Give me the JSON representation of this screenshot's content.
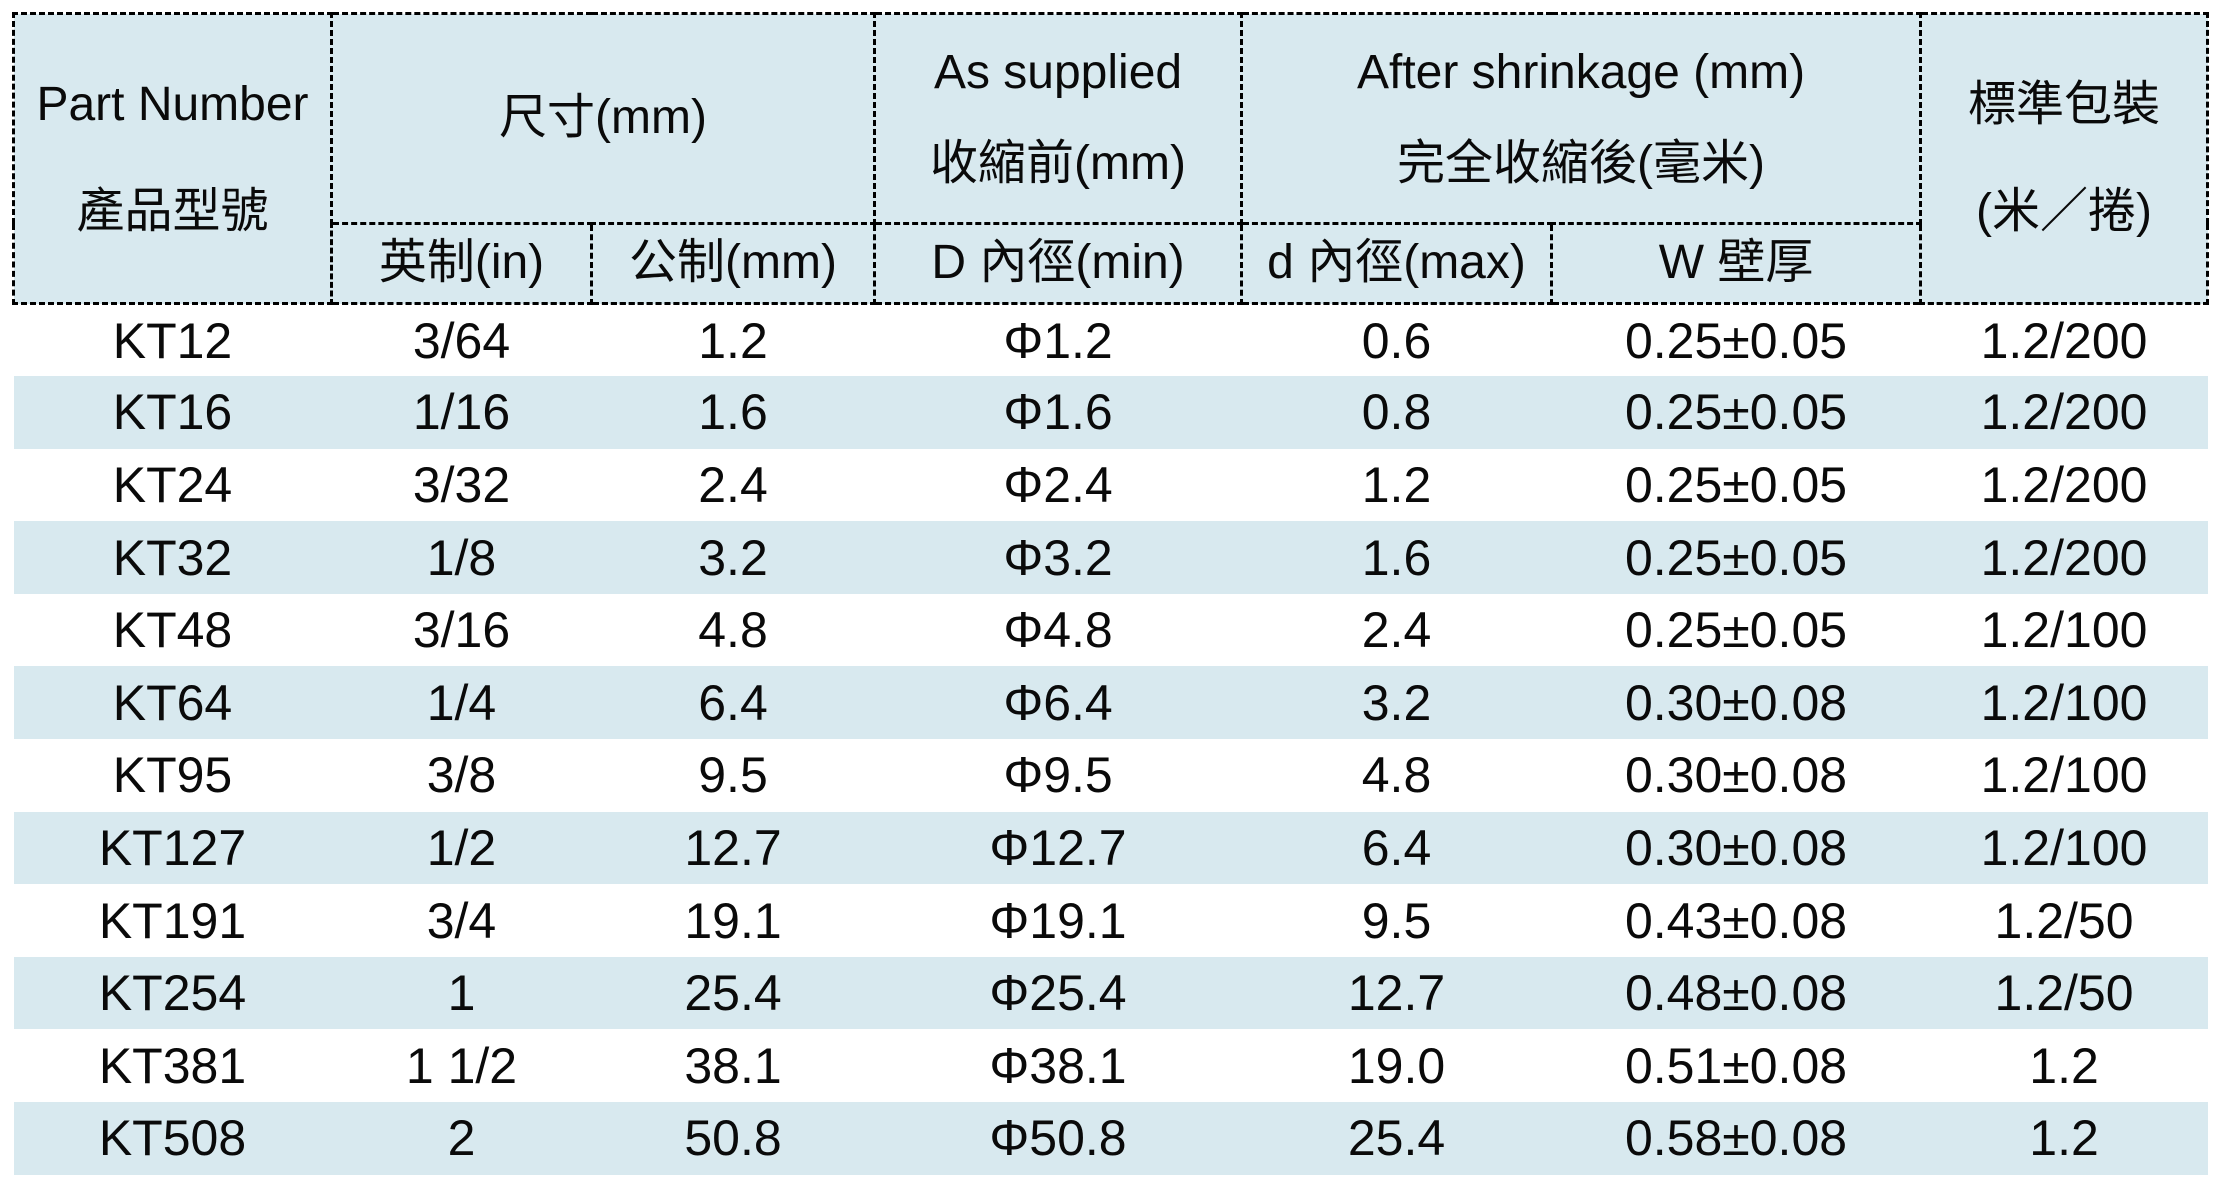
{
  "colors": {
    "header_bg": "#d8e9ef",
    "row_alt_bg": "#d8e9ef",
    "border": "#000000",
    "text": "#0a0a0a",
    "page_bg": "#ffffff"
  },
  "table": {
    "header": {
      "part_number": {
        "line1": "Part Number",
        "line2": "產品型號"
      },
      "size": {
        "title": "尺寸(mm)"
      },
      "as_supplied": {
        "line1": "As supplied",
        "line2": "收縮前(mm)"
      },
      "after_shrinkage": {
        "line1": "After shrinkage (mm)",
        "line2": "完全收縮後(毫米)"
      },
      "packaging": {
        "line1": "標準包裝",
        "line2": "(米／捲)"
      }
    },
    "subheader": {
      "inch": "英制(in)",
      "metric": "公制(mm)",
      "d_min": "D 內徑(min)",
      "d_max": "d 內徑(max)",
      "wall": "W 壁厚"
    },
    "rows": [
      {
        "part": "KT12",
        "inch": "3/64",
        "metric": "1.2",
        "supplied": "Φ1.2",
        "shrunk": "0.6",
        "wall": "0.25±0.05",
        "pack": "1.2/200"
      },
      {
        "part": "KT16",
        "inch": "1/16",
        "metric": "1.6",
        "supplied": "Φ1.6",
        "shrunk": "0.8",
        "wall": "0.25±0.05",
        "pack": "1.2/200"
      },
      {
        "part": "KT24",
        "inch": "3/32",
        "metric": "2.4",
        "supplied": "Φ2.4",
        "shrunk": "1.2",
        "wall": "0.25±0.05",
        "pack": "1.2/200"
      },
      {
        "part": "KT32",
        "inch": "1/8",
        "metric": "3.2",
        "supplied": "Φ3.2",
        "shrunk": "1.6",
        "wall": "0.25±0.05",
        "pack": "1.2/200"
      },
      {
        "part": "KT48",
        "inch": "3/16",
        "metric": "4.8",
        "supplied": "Φ4.8",
        "shrunk": "2.4",
        "wall": "0.25±0.05",
        "pack": "1.2/100"
      },
      {
        "part": "KT64",
        "inch": "1/4",
        "metric": "6.4",
        "supplied": "Φ6.4",
        "shrunk": "3.2",
        "wall": "0.30±0.08",
        "pack": "1.2/100"
      },
      {
        "part": "KT95",
        "inch": "3/8",
        "metric": "9.5",
        "supplied": "Φ9.5",
        "shrunk": "4.8",
        "wall": "0.30±0.08",
        "pack": "1.2/100"
      },
      {
        "part": "KT127",
        "inch": "1/2",
        "metric": "12.7",
        "supplied": "Φ12.7",
        "shrunk": "6.4",
        "wall": "0.30±0.08",
        "pack": "1.2/100"
      },
      {
        "part": "KT191",
        "inch": "3/4",
        "metric": "19.1",
        "supplied": "Φ19.1",
        "shrunk": "9.5",
        "wall": "0.43±0.08",
        "pack": "1.2/50"
      },
      {
        "part": "KT254",
        "inch": "1",
        "metric": "25.4",
        "supplied": "Φ25.4",
        "shrunk": "12.7",
        "wall": "0.48±0.08",
        "pack": "1.2/50"
      },
      {
        "part": "KT381",
        "inch": "1 1/2",
        "metric": "38.1",
        "supplied": "Φ38.1",
        "shrunk": "19.0",
        "wall": "0.51±0.08",
        "pack": "1.2"
      },
      {
        "part": "KT508",
        "inch": "2",
        "metric": "50.8",
        "supplied": "Φ50.8",
        "shrunk": "25.4",
        "wall": "0.58±0.08",
        "pack": "1.2"
      }
    ]
  }
}
